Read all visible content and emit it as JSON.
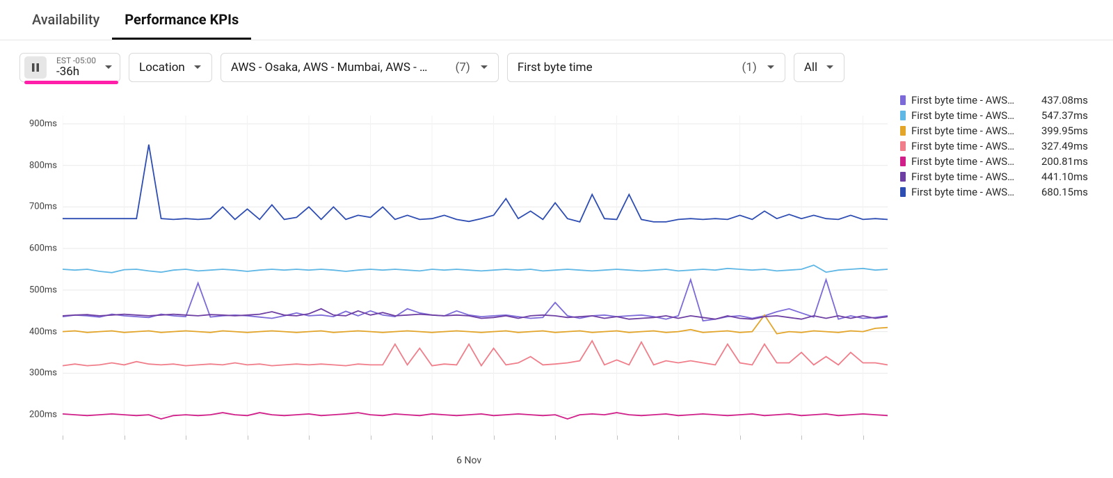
{
  "tabs": [
    {
      "label": "Availability",
      "active": false
    },
    {
      "label": "Performance KPIs",
      "active": true
    }
  ],
  "controls": {
    "time": {
      "tz": "EST -05:00",
      "range": "-36h",
      "underline_color": "#ff1fa8"
    },
    "location": {
      "label": "Location"
    },
    "regions": {
      "label": "AWS - Osaka, AWS - Mumbai, AWS - …",
      "count_label": "(7)"
    },
    "metric": {
      "label": "First byte time",
      "count_label": "(1)"
    },
    "all": {
      "label": "All"
    }
  },
  "chart": {
    "type": "line",
    "y": {
      "min": 150,
      "max": 920,
      "ticks": [
        200,
        300,
        400,
        500,
        600,
        700,
        800,
        900
      ],
      "unit": "ms",
      "label_fontsize": 13,
      "grid_color": "#e9e9e9"
    },
    "x": {
      "n": 68,
      "date_label": "6 Nov",
      "date_idx": 33,
      "vgrid_idx": [
        0,
        5,
        10,
        15,
        20,
        25,
        30,
        35,
        40,
        45,
        50,
        55,
        60,
        65
      ],
      "vgrid_color": "#f2f2f2"
    },
    "background_color": "#ffffff",
    "line_width": 1.8,
    "legend_label_prefix": "First byte time - AWS…",
    "series": [
      {
        "name": "s0",
        "color": "#7b6ad8",
        "legend_value": "437.08ms",
        "values": [
          436,
          440,
          438,
          435,
          442,
          438,
          436,
          434,
          442,
          438,
          436,
          517,
          435,
          438,
          440,
          438,
          435,
          432,
          438,
          445,
          438,
          440,
          436,
          449,
          438,
          450,
          440,
          436,
          455,
          445,
          440,
          438,
          450,
          440,
          436,
          438,
          440,
          436,
          432,
          434,
          470,
          438,
          432,
          438,
          440,
          436,
          438,
          440,
          436,
          430,
          438,
          525,
          426,
          430,
          436,
          438,
          432,
          438,
          448,
          455,
          445,
          435,
          525,
          430,
          438,
          432,
          434,
          438
        ]
      },
      {
        "name": "s1",
        "color": "#5fb7e5",
        "legend_value": "547.37ms",
        "values": [
          550,
          548,
          550,
          545,
          542,
          549,
          550,
          546,
          543,
          548,
          550,
          546,
          548,
          550,
          548,
          545,
          548,
          550,
          548,
          550,
          548,
          550,
          548,
          545,
          548,
          550,
          548,
          550,
          548,
          546,
          550,
          548,
          550,
          548,
          546,
          548,
          550,
          548,
          550,
          546,
          548,
          550,
          548,
          546,
          548,
          550,
          548,
          546,
          548,
          550,
          546,
          548,
          550,
          548,
          552,
          550,
          548,
          550,
          546,
          548,
          550,
          560,
          543,
          548,
          550,
          552,
          548,
          550
        ]
      },
      {
        "name": "s2",
        "color": "#e3a52a",
        "legend_value": "399.95ms",
        "values": [
          400,
          402,
          398,
          400,
          402,
          398,
          400,
          402,
          398,
          400,
          402,
          400,
          398,
          402,
          400,
          398,
          400,
          402,
          400,
          398,
          400,
          402,
          398,
          400,
          402,
          400,
          398,
          400,
          402,
          400,
          398,
          400,
          402,
          400,
          398,
          400,
          402,
          398,
          400,
          402,
          398,
          400,
          402,
          398,
          400,
          402,
          398,
          400,
          402,
          398,
          400,
          405,
          398,
          400,
          402,
          398,
          400,
          440,
          395,
          400,
          398,
          402,
          400,
          398,
          402,
          400,
          408,
          410
        ]
      },
      {
        "name": "s3",
        "color": "#f07e8a",
        "legend_value": "327.49ms",
        "values": [
          318,
          322,
          318,
          320,
          325,
          320,
          328,
          322,
          320,
          322,
          318,
          320,
          322,
          320,
          325,
          320,
          322,
          318,
          320,
          322,
          320,
          322,
          320,
          318,
          322,
          320,
          320,
          370,
          320,
          360,
          318,
          322,
          320,
          370,
          318,
          360,
          320,
          325,
          340,
          320,
          322,
          325,
          330,
          378,
          320,
          332,
          320,
          375,
          320,
          330,
          325,
          330,
          325,
          320,
          370,
          325,
          320,
          370,
          325,
          325,
          350,
          320,
          340,
          320,
          350,
          325,
          325,
          320
        ]
      },
      {
        "name": "s4",
        "color": "#d11f8a",
        "legend_value": "200.81ms",
        "values": [
          202,
          200,
          198,
          200,
          202,
          200,
          198,
          200,
          190,
          198,
          200,
          198,
          200,
          205,
          200,
          198,
          205,
          200,
          198,
          200,
          202,
          198,
          200,
          202,
          205,
          200,
          198,
          202,
          200,
          198,
          202,
          200,
          198,
          200,
          202,
          198,
          200,
          202,
          200,
          198,
          200,
          190,
          200,
          202,
          200,
          205,
          200,
          198,
          200,
          202,
          198,
          200,
          202,
          200,
          198,
          200,
          202,
          198,
          200,
          202,
          198,
          200,
          202,
          198,
          200,
          202,
          200,
          198
        ]
      },
      {
        "name": "s5",
        "color": "#6e3fa3",
        "legend_value": "441.10ms",
        "values": [
          438,
          440,
          441,
          438,
          440,
          442,
          440,
          438,
          440,
          442,
          440,
          438,
          441,
          440,
          438,
          440,
          442,
          448,
          440,
          438,
          443,
          455,
          440,
          438,
          450,
          440,
          446,
          438,
          440,
          442,
          440,
          438,
          440,
          438,
          432,
          434,
          438,
          432,
          438,
          440,
          438,
          434,
          436,
          438,
          432,
          436,
          430,
          432,
          434,
          438,
          432,
          438,
          434,
          430,
          438,
          432,
          430,
          436,
          438,
          434,
          430,
          438,
          432,
          438,
          432,
          438,
          432,
          436
        ]
      },
      {
        "name": "s6",
        "color": "#2e4db3",
        "legend_value": "680.15ms",
        "values": [
          672,
          672,
          672,
          672,
          672,
          672,
          672,
          850,
          672,
          670,
          672,
          670,
          672,
          700,
          670,
          695,
          670,
          705,
          670,
          675,
          700,
          670,
          700,
          670,
          680,
          675,
          700,
          670,
          680,
          670,
          672,
          680,
          670,
          665,
          672,
          680,
          720,
          672,
          690,
          670,
          710,
          672,
          664,
          730,
          672,
          670,
          730,
          670,
          664,
          664,
          670,
          672,
          670,
          672,
          670,
          680,
          670,
          690,
          672,
          682,
          672,
          680,
          672,
          670,
          680,
          670,
          672,
          670
        ]
      }
    ]
  }
}
